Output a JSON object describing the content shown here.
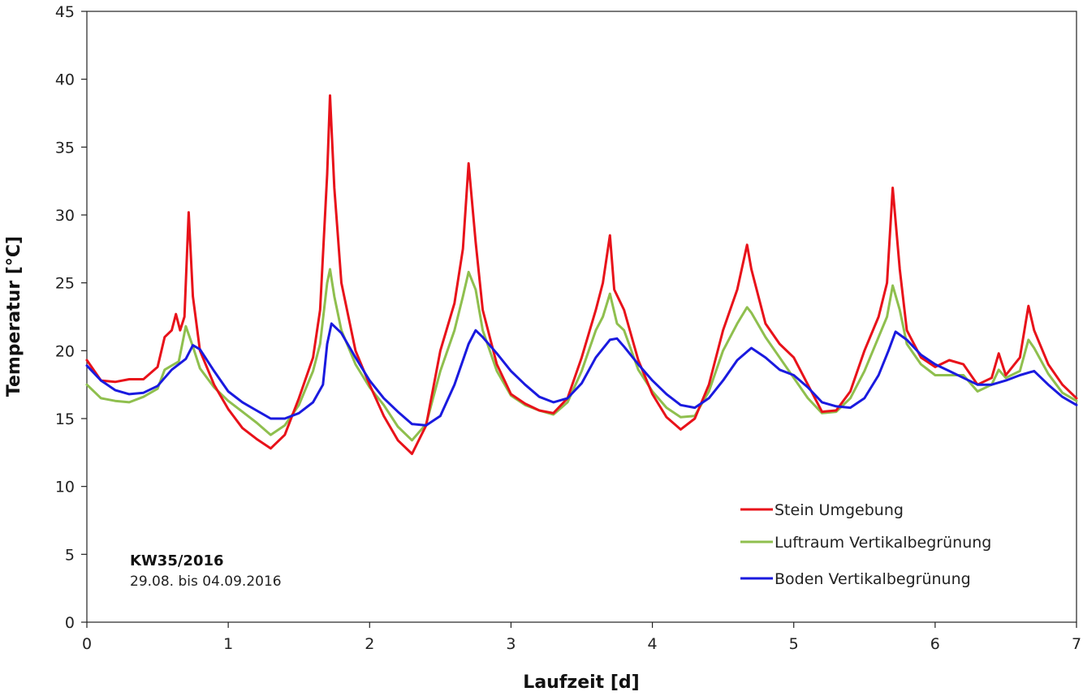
{
  "chart_data": {
    "type": "line",
    "xlabel": "Laufzeit [d]",
    "ylabel": "Temperatur [°C]",
    "xlim": [
      0,
      7
    ],
    "ylim": [
      0,
      45
    ],
    "x_ticks": [
      "0",
      "1",
      "2",
      "3",
      "4",
      "5",
      "6",
      "7"
    ],
    "y_ticks": [
      "0",
      "5",
      "10",
      "15",
      "20",
      "25",
      "30",
      "35",
      "40",
      "45"
    ],
    "grid": false,
    "legend_position": "bottom-right",
    "annotation": {
      "title": "KW35/2016",
      "subtitle": "29.08. bis 04.09.2016"
    },
    "series": [
      {
        "name": "Stein Umgebung",
        "color": "#e8121a",
        "points": [
          [
            0,
            19.3
          ],
          [
            0.1,
            17.8
          ],
          [
            0.2,
            17.7
          ],
          [
            0.3,
            17.9
          ],
          [
            0.4,
            17.9
          ],
          [
            0.5,
            18.8
          ],
          [
            0.55,
            21
          ],
          [
            0.6,
            21.5
          ],
          [
            0.63,
            22.7
          ],
          [
            0.66,
            21.5
          ],
          [
            0.69,
            22.5
          ],
          [
            0.72,
            30.2
          ],
          [
            0.75,
            24
          ],
          [
            0.8,
            20
          ],
          [
            0.9,
            17.5
          ],
          [
            1.0,
            15.7
          ],
          [
            1.1,
            14.3
          ],
          [
            1.2,
            13.5
          ],
          [
            1.3,
            12.8
          ],
          [
            1.4,
            13.8
          ],
          [
            1.5,
            16.5
          ],
          [
            1.6,
            19.5
          ],
          [
            1.65,
            23
          ],
          [
            1.7,
            33
          ],
          [
            1.72,
            38.8
          ],
          [
            1.75,
            32
          ],
          [
            1.8,
            25
          ],
          [
            1.9,
            20
          ],
          [
            2.0,
            17.5
          ],
          [
            2.1,
            15.2
          ],
          [
            2.2,
            13.4
          ],
          [
            2.3,
            12.4
          ],
          [
            2.4,
            14.5
          ],
          [
            2.5,
            20
          ],
          [
            2.6,
            23.5
          ],
          [
            2.66,
            27.5
          ],
          [
            2.7,
            33.8
          ],
          [
            2.75,
            28
          ],
          [
            2.8,
            23
          ],
          [
            2.9,
            19
          ],
          [
            3.0,
            16.8
          ],
          [
            3.1,
            16.1
          ],
          [
            3.2,
            15.6
          ],
          [
            3.3,
            15.4
          ],
          [
            3.4,
            16.5
          ],
          [
            3.5,
            19.5
          ],
          [
            3.6,
            23
          ],
          [
            3.65,
            25
          ],
          [
            3.7,
            28.5
          ],
          [
            3.73,
            24.5
          ],
          [
            3.8,
            23
          ],
          [
            3.9,
            19.3
          ],
          [
            4.0,
            16.8
          ],
          [
            4.1,
            15.1
          ],
          [
            4.2,
            14.2
          ],
          [
            4.3,
            15
          ],
          [
            4.4,
            17.5
          ],
          [
            4.5,
            21.5
          ],
          [
            4.6,
            24.5
          ],
          [
            4.67,
            27.8
          ],
          [
            4.7,
            26
          ],
          [
            4.8,
            22
          ],
          [
            4.9,
            20.5
          ],
          [
            5.0,
            19.5
          ],
          [
            5.1,
            17.5
          ],
          [
            5.2,
            15.5
          ],
          [
            5.3,
            15.6
          ],
          [
            5.4,
            17
          ],
          [
            5.5,
            20
          ],
          [
            5.6,
            22.5
          ],
          [
            5.66,
            25
          ],
          [
            5.7,
            32
          ],
          [
            5.75,
            26
          ],
          [
            5.8,
            21.5
          ],
          [
            5.9,
            19.5
          ],
          [
            6.0,
            18.8
          ],
          [
            6.1,
            19.3
          ],
          [
            6.2,
            19
          ],
          [
            6.3,
            17.5
          ],
          [
            6.4,
            18
          ],
          [
            6.45,
            19.8
          ],
          [
            6.5,
            18.2
          ],
          [
            6.6,
            19.5
          ],
          [
            6.66,
            23.3
          ],
          [
            6.7,
            21.5
          ],
          [
            6.8,
            19
          ],
          [
            6.9,
            17.5
          ],
          [
            7.0,
            16.5
          ]
        ]
      },
      {
        "name": "Luftraum Vertikalbegrünung",
        "color": "#8fbf4e",
        "points": [
          [
            0,
            17.5
          ],
          [
            0.1,
            16.5
          ],
          [
            0.2,
            16.3
          ],
          [
            0.3,
            16.2
          ],
          [
            0.4,
            16.6
          ],
          [
            0.5,
            17.2
          ],
          [
            0.55,
            18.6
          ],
          [
            0.6,
            18.9
          ],
          [
            0.65,
            19.2
          ],
          [
            0.7,
            21.8
          ],
          [
            0.75,
            20.3
          ],
          [
            0.8,
            18.7
          ],
          [
            0.9,
            17.3
          ],
          [
            1.0,
            16.3
          ],
          [
            1.1,
            15.5
          ],
          [
            1.2,
            14.7
          ],
          [
            1.3,
            13.8
          ],
          [
            1.4,
            14.5
          ],
          [
            1.5,
            16
          ],
          [
            1.6,
            18.5
          ],
          [
            1.65,
            20.5
          ],
          [
            1.7,
            25
          ],
          [
            1.72,
            26
          ],
          [
            1.75,
            24
          ],
          [
            1.8,
            21.5
          ],
          [
            1.9,
            19
          ],
          [
            2.0,
            17.3
          ],
          [
            2.1,
            16
          ],
          [
            2.2,
            14.4
          ],
          [
            2.3,
            13.4
          ],
          [
            2.4,
            14.6
          ],
          [
            2.5,
            18.5
          ],
          [
            2.6,
            21.5
          ],
          [
            2.66,
            24
          ],
          [
            2.7,
            25.8
          ],
          [
            2.75,
            24.5
          ],
          [
            2.8,
            21.5
          ],
          [
            2.9,
            18.5
          ],
          [
            3.0,
            16.7
          ],
          [
            3.1,
            16
          ],
          [
            3.2,
            15.6
          ],
          [
            3.3,
            15.3
          ],
          [
            3.4,
            16.2
          ],
          [
            3.5,
            18.5
          ],
          [
            3.6,
            21.5
          ],
          [
            3.65,
            22.5
          ],
          [
            3.7,
            24.2
          ],
          [
            3.75,
            22
          ],
          [
            3.8,
            21.5
          ],
          [
            3.9,
            18.6
          ],
          [
            4.0,
            17
          ],
          [
            4.1,
            15.8
          ],
          [
            4.2,
            15.1
          ],
          [
            4.3,
            15.2
          ],
          [
            4.4,
            17
          ],
          [
            4.5,
            20
          ],
          [
            4.6,
            22
          ],
          [
            4.67,
            23.2
          ],
          [
            4.7,
            22.8
          ],
          [
            4.8,
            21
          ],
          [
            4.9,
            19.5
          ],
          [
            5.0,
            18
          ],
          [
            5.1,
            16.5
          ],
          [
            5.2,
            15.4
          ],
          [
            5.3,
            15.5
          ],
          [
            5.4,
            16.5
          ],
          [
            5.5,
            18.5
          ],
          [
            5.6,
            21
          ],
          [
            5.66,
            22.5
          ],
          [
            5.7,
            24.8
          ],
          [
            5.75,
            23
          ],
          [
            5.8,
            20.5
          ],
          [
            5.9,
            19
          ],
          [
            6.0,
            18.2
          ],
          [
            6.1,
            18.2
          ],
          [
            6.2,
            18.2
          ],
          [
            6.3,
            17
          ],
          [
            6.4,
            17.5
          ],
          [
            6.45,
            18.6
          ],
          [
            6.5,
            18
          ],
          [
            6.6,
            18.5
          ],
          [
            6.66,
            20.8
          ],
          [
            6.7,
            20.2
          ],
          [
            6.8,
            18.3
          ],
          [
            6.9,
            16.9
          ],
          [
            7.0,
            16.3
          ]
        ]
      },
      {
        "name": "Boden Vertikalbegrünung",
        "color": "#1a1adf",
        "points": [
          [
            0,
            18.9
          ],
          [
            0.1,
            17.8
          ],
          [
            0.2,
            17.1
          ],
          [
            0.3,
            16.8
          ],
          [
            0.4,
            16.9
          ],
          [
            0.5,
            17.4
          ],
          [
            0.6,
            18.6
          ],
          [
            0.7,
            19.4
          ],
          [
            0.75,
            20.4
          ],
          [
            0.8,
            20.1
          ],
          [
            0.9,
            18.5
          ],
          [
            1.0,
            17
          ],
          [
            1.1,
            16.2
          ],
          [
            1.2,
            15.6
          ],
          [
            1.3,
            15
          ],
          [
            1.4,
            15
          ],
          [
            1.5,
            15.4
          ],
          [
            1.6,
            16.2
          ],
          [
            1.67,
            17.5
          ],
          [
            1.7,
            20.5
          ],
          [
            1.73,
            22
          ],
          [
            1.8,
            21.3
          ],
          [
            1.9,
            19.5
          ],
          [
            2.0,
            17.8
          ],
          [
            2.1,
            16.5
          ],
          [
            2.2,
            15.5
          ],
          [
            2.3,
            14.6
          ],
          [
            2.4,
            14.5
          ],
          [
            2.5,
            15.2
          ],
          [
            2.6,
            17.5
          ],
          [
            2.7,
            20.5
          ],
          [
            2.75,
            21.5
          ],
          [
            2.8,
            21
          ],
          [
            2.9,
            19.8
          ],
          [
            3.0,
            18.5
          ],
          [
            3.1,
            17.5
          ],
          [
            3.2,
            16.6
          ],
          [
            3.3,
            16.2
          ],
          [
            3.4,
            16.5
          ],
          [
            3.5,
            17.6
          ],
          [
            3.6,
            19.5
          ],
          [
            3.7,
            20.8
          ],
          [
            3.75,
            20.9
          ],
          [
            3.8,
            20.3
          ],
          [
            3.9,
            19
          ],
          [
            4.0,
            17.8
          ],
          [
            4.1,
            16.8
          ],
          [
            4.2,
            16
          ],
          [
            4.3,
            15.8
          ],
          [
            4.4,
            16.5
          ],
          [
            4.5,
            17.8
          ],
          [
            4.6,
            19.3
          ],
          [
            4.7,
            20.2
          ],
          [
            4.8,
            19.5
          ],
          [
            4.9,
            18.6
          ],
          [
            5.0,
            18.2
          ],
          [
            5.1,
            17.3
          ],
          [
            5.2,
            16.2
          ],
          [
            5.3,
            15.9
          ],
          [
            5.4,
            15.8
          ],
          [
            5.5,
            16.5
          ],
          [
            5.6,
            18.2
          ],
          [
            5.67,
            20
          ],
          [
            5.72,
            21.4
          ],
          [
            5.8,
            20.8
          ],
          [
            5.9,
            19.7
          ],
          [
            6.0,
            19
          ],
          [
            6.1,
            18.5
          ],
          [
            6.2,
            18
          ],
          [
            6.3,
            17.5
          ],
          [
            6.4,
            17.5
          ],
          [
            6.5,
            17.8
          ],
          [
            6.6,
            18.2
          ],
          [
            6.7,
            18.5
          ],
          [
            6.8,
            17.5
          ],
          [
            6.9,
            16.6
          ],
          [
            7.0,
            16
          ]
        ]
      }
    ]
  }
}
